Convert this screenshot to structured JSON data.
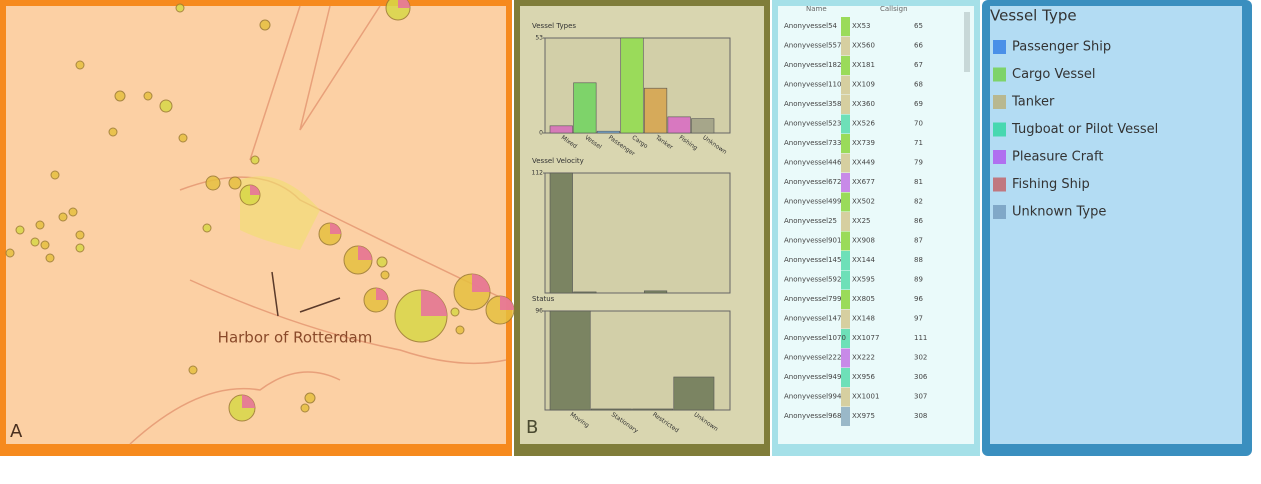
{
  "panel_a": {
    "label": "A",
    "annotation": "Harbor of Rotterdam"
  },
  "panel_b": {
    "label": "B",
    "charts": [
      {
        "title": "Vessel Types",
        "yticks": [
          0,
          53
        ],
        "ylim": [
          0,
          53
        ],
        "categories": [
          "Mixed",
          "Vessel",
          "Passenger",
          "Cargo",
          "Tanker",
          "Fishing",
          "Unknown"
        ],
        "values": [
          4,
          28,
          1,
          53,
          25,
          9,
          8
        ],
        "colors": [
          "#d67ab8",
          "#7ed36a",
          "#7ab0d8",
          "#9adb5a",
          "#d6aa5a",
          "#d878c0",
          "#a6a68a"
        ]
      },
      {
        "title": "Vessel Velocity",
        "yticks": [
          112
        ],
        "ylim": [
          0,
          112
        ],
        "values": [
          112,
          1,
          0,
          0,
          2,
          0,
          0
        ],
        "colors": [
          "#7b8462",
          "#7b8462",
          "#7b8462",
          "#7b8462",
          "#7b8462",
          "#7b8462",
          "#7b8462"
        ]
      },
      {
        "title": "Status",
        "yticks": [
          96
        ],
        "ylim": [
          0,
          96
        ],
        "categories": [
          "Moving",
          "Stationary",
          "Restricted",
          "Unknown"
        ],
        "values": [
          96,
          1,
          1,
          32
        ],
        "colors": [
          "#7b8462",
          "#7b8462",
          "#7b8462",
          "#7b8462"
        ]
      }
    ]
  },
  "table": {
    "headers": [
      "Name",
      "Callsign"
    ],
    "rows": [
      [
        "Anonyvessel54",
        "XX53",
        "65",
        "#9adb5a"
      ],
      [
        "Anonyvessel557",
        "XX560",
        "66",
        "#d6cfa0"
      ],
      [
        "Anonyvessel182",
        "XX181",
        "67",
        "#9adb5a"
      ],
      [
        "Anonyvessel110",
        "XX109",
        "68",
        "#d6cfa0"
      ],
      [
        "Anonyvessel358",
        "XX360",
        "69",
        "#d6cfa0"
      ],
      [
        "Anonyvessel523",
        "XX526",
        "70",
        "#6ee0b8"
      ],
      [
        "Anonyvessel733",
        "XX739",
        "71",
        "#9adb5a"
      ],
      [
        "Anonyvessel446",
        "XX449",
        "79",
        "#d6cfa0"
      ],
      [
        "Anonyvessel672",
        "XX677",
        "81",
        "#c88ae8"
      ],
      [
        "Anonyvessel499",
        "XX502",
        "82",
        "#9adb5a"
      ],
      [
        "Anonyvessel25",
        "XX25",
        "86",
        "#d6cfa0"
      ],
      [
        "Anonyvessel901",
        "XX908",
        "87",
        "#9adb5a"
      ],
      [
        "Anonyvessel145",
        "XX144",
        "88",
        "#6ee0b8"
      ],
      [
        "Anonyvessel592",
        "XX595",
        "89",
        "#6ee0b8"
      ],
      [
        "Anonyvessel799",
        "XX805",
        "96",
        "#9adb5a"
      ],
      [
        "Anonyvessel147",
        "XX148",
        "97",
        "#d6cfa0"
      ],
      [
        "Anonyvessel1070",
        "XX1077",
        "111",
        "#6ee0b8"
      ],
      [
        "Anonyvessel222",
        "XX222",
        "302",
        "#c88ae8"
      ],
      [
        "Anonyvessel949",
        "XX956",
        "306",
        "#6ee0b8"
      ],
      [
        "Anonyvessel994",
        "XX1001",
        "307",
        "#d6cfa0"
      ],
      [
        "Anonyvessel968",
        "XX975",
        "308",
        "#9ab8c8"
      ]
    ]
  },
  "legend": {
    "title": "Vessel Type",
    "items": [
      {
        "label": "Passenger Ship",
        "color": "#4a90e8"
      },
      {
        "label": "Cargo Vessel",
        "color": "#7ed36a"
      },
      {
        "label": "Tanker",
        "color": "#b8b890"
      },
      {
        "label": "Tugboat or Pilot Vessel",
        "color": "#48d8b0"
      },
      {
        "label": "Pleasure Craft",
        "color": "#b070f0"
      },
      {
        "label": "Fishing Ship",
        "color": "#c07880"
      },
      {
        "label": "Unknown Type",
        "color": "#80a8c8"
      }
    ]
  }
}
